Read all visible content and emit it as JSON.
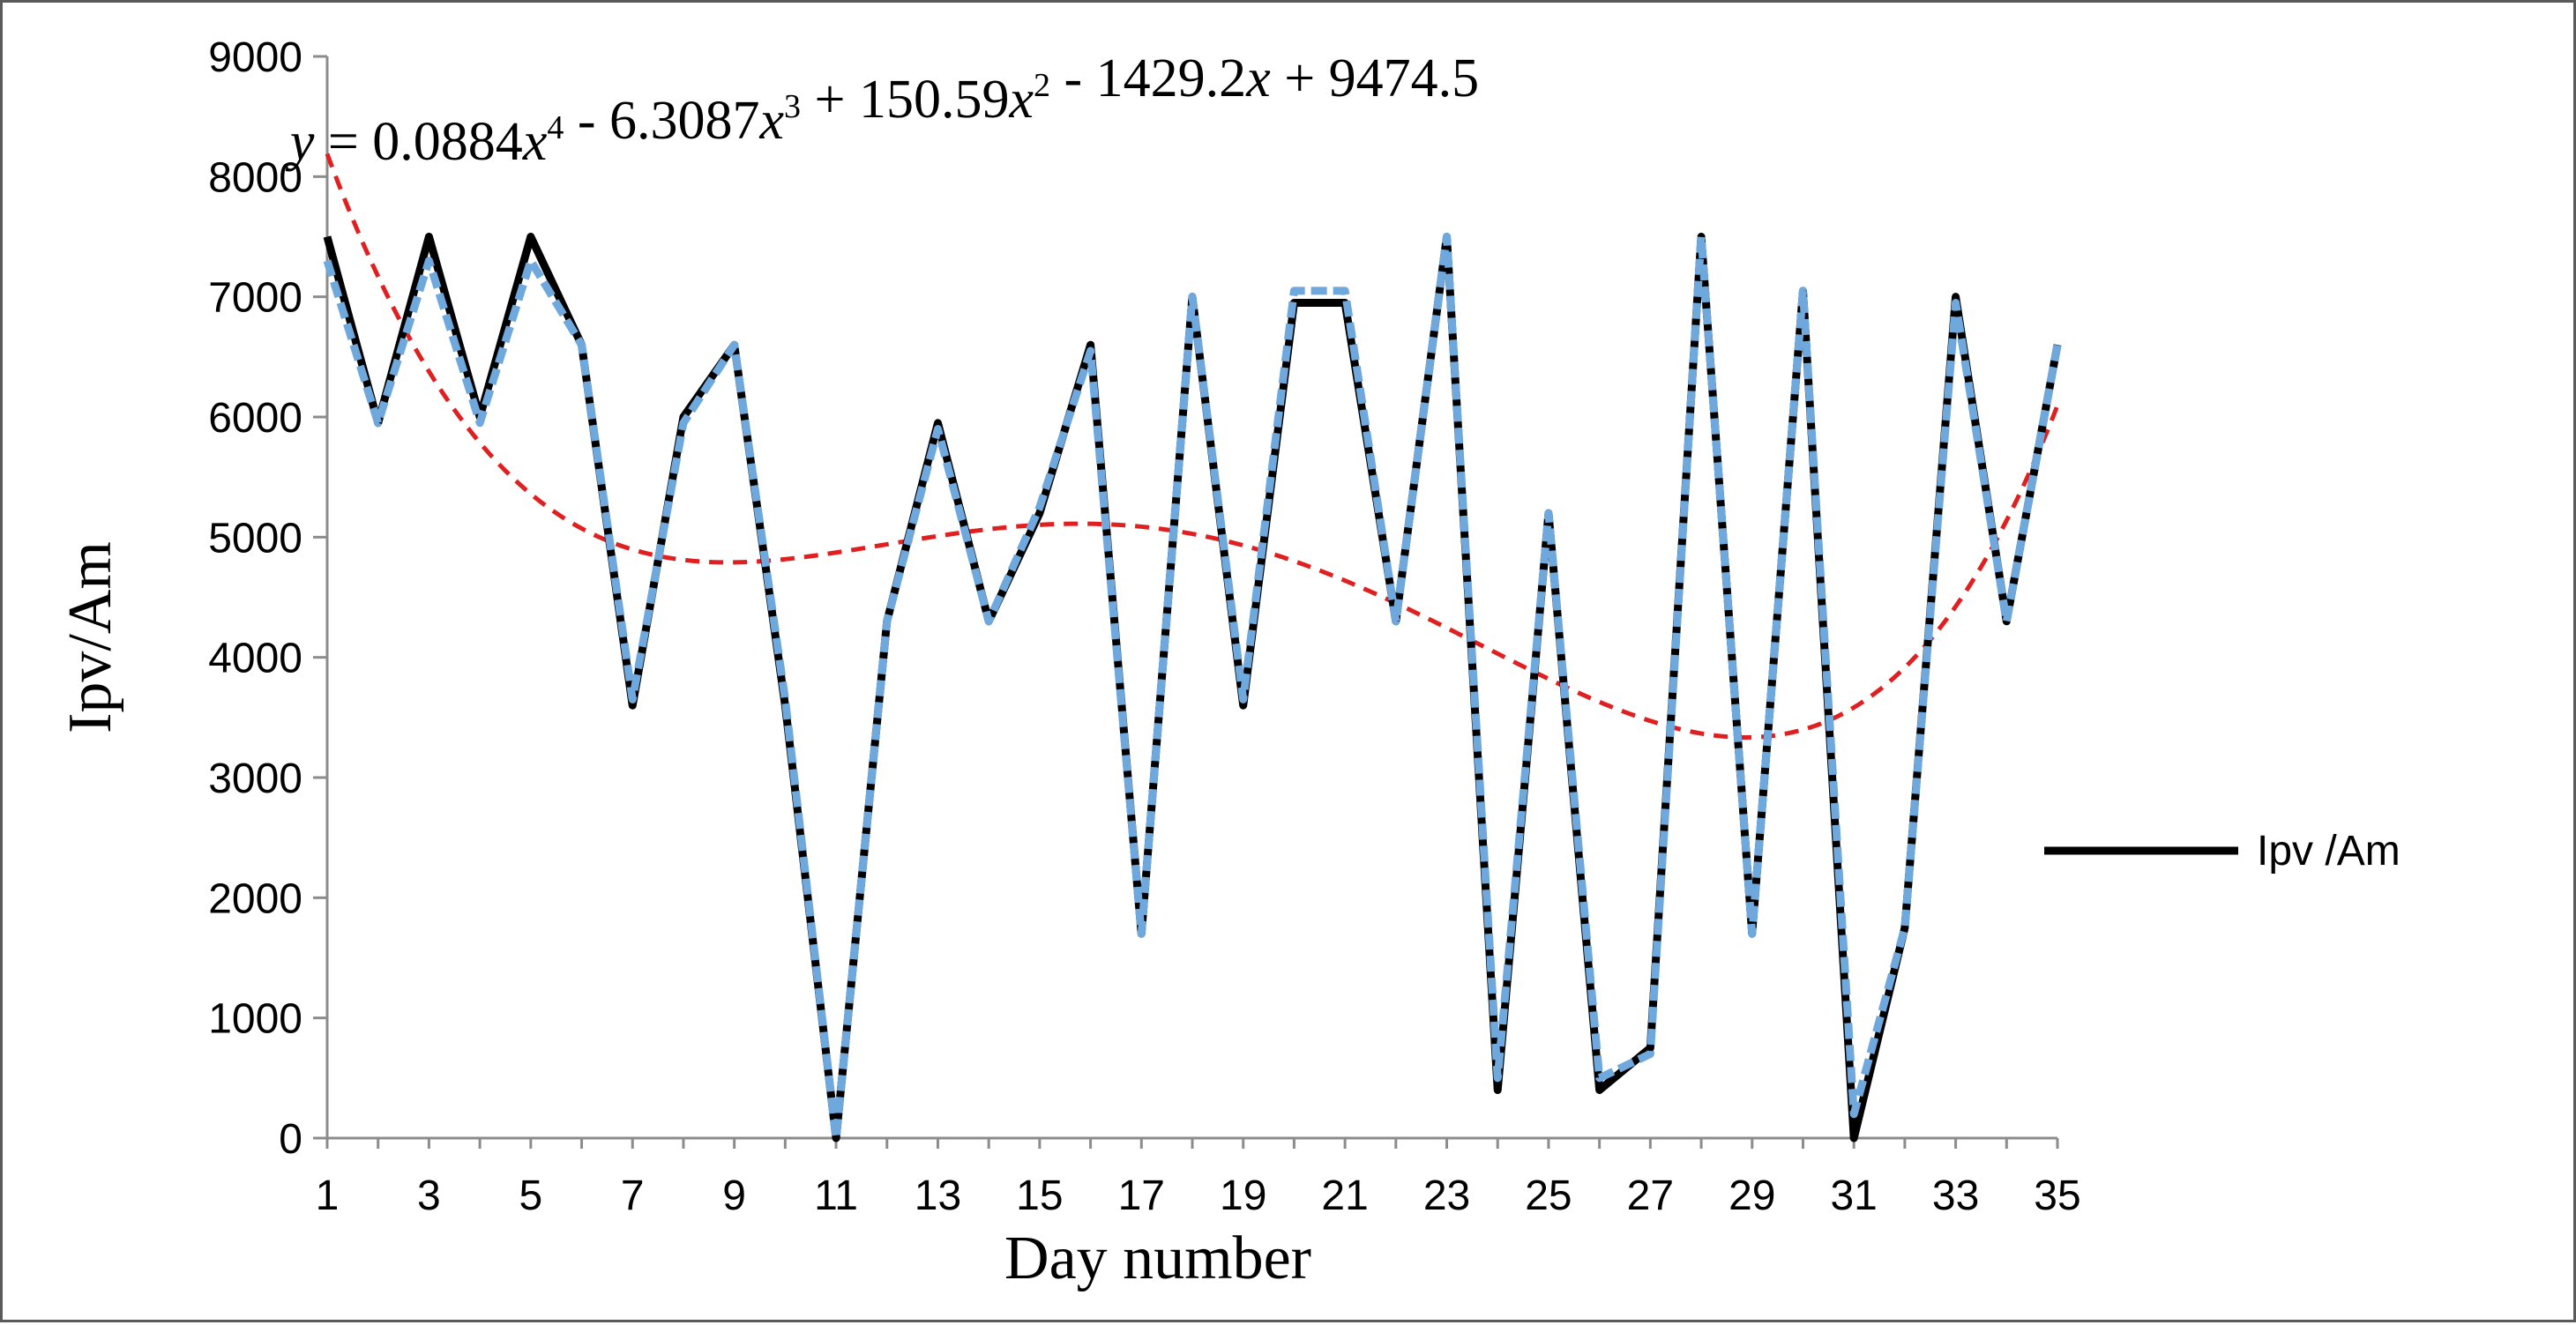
{
  "chart_data": {
    "type": "line",
    "xlabel": "Day number",
    "ylabel": "Ipv/Am",
    "equation": "y = 0.0884x⁴ - 6.3087x³ + 150.59x² - 1429.2x + 9474.5",
    "xlim": [
      1,
      35
    ],
    "ylim": [
      0,
      9000
    ],
    "x_ticks": [
      1,
      3,
      5,
      7,
      9,
      11,
      13,
      15,
      17,
      19,
      21,
      23,
      25,
      27,
      29,
      31,
      33,
      35
    ],
    "y_ticks": [
      0,
      1000,
      2000,
      3000,
      4000,
      5000,
      6000,
      7000,
      8000,
      9000
    ],
    "grid": false,
    "legend_position": "right",
    "x": [
      1,
      2,
      3,
      4,
      5,
      6,
      7,
      8,
      9,
      10,
      11,
      12,
      13,
      14,
      15,
      16,
      17,
      18,
      19,
      20,
      21,
      22,
      23,
      24,
      25,
      26,
      27,
      28,
      29,
      30,
      31,
      32,
      33,
      34,
      35
    ],
    "series": [
      {
        "name": "Ipv /Am",
        "style": "solid",
        "color": "#000000",
        "values": [
          7500,
          5950,
          7500,
          6000,
          7500,
          6600,
          3600,
          6000,
          6600,
          3600,
          0,
          4300,
          5950,
          4300,
          5200,
          6600,
          1700,
          7000,
          3600,
          6950,
          6950,
          4300,
          7500,
          400,
          5200,
          400,
          750,
          7500,
          1700,
          7050,
          0,
          1750,
          7000,
          4300,
          6600
        ]
      },
      {
        "style": "dashed",
        "color": "#6fa8dc",
        "values": [
          7300,
          5950,
          7300,
          5950,
          7300,
          6600,
          3650,
          5950,
          6600,
          3650,
          0,
          4300,
          5900,
          4300,
          5250,
          6550,
          1700,
          7000,
          3650,
          7050,
          7050,
          4300,
          7500,
          500,
          5200,
          500,
          700,
          7500,
          1700,
          7050,
          200,
          1750,
          6950,
          4300,
          6600
        ]
      },
      {
        "style": "dashed",
        "color": "#e02020",
        "trendline": "poly4",
        "coefficients": [
          0.0884,
          -6.3087,
          150.59,
          -1429.2,
          9474.5
        ]
      }
    ]
  }
}
